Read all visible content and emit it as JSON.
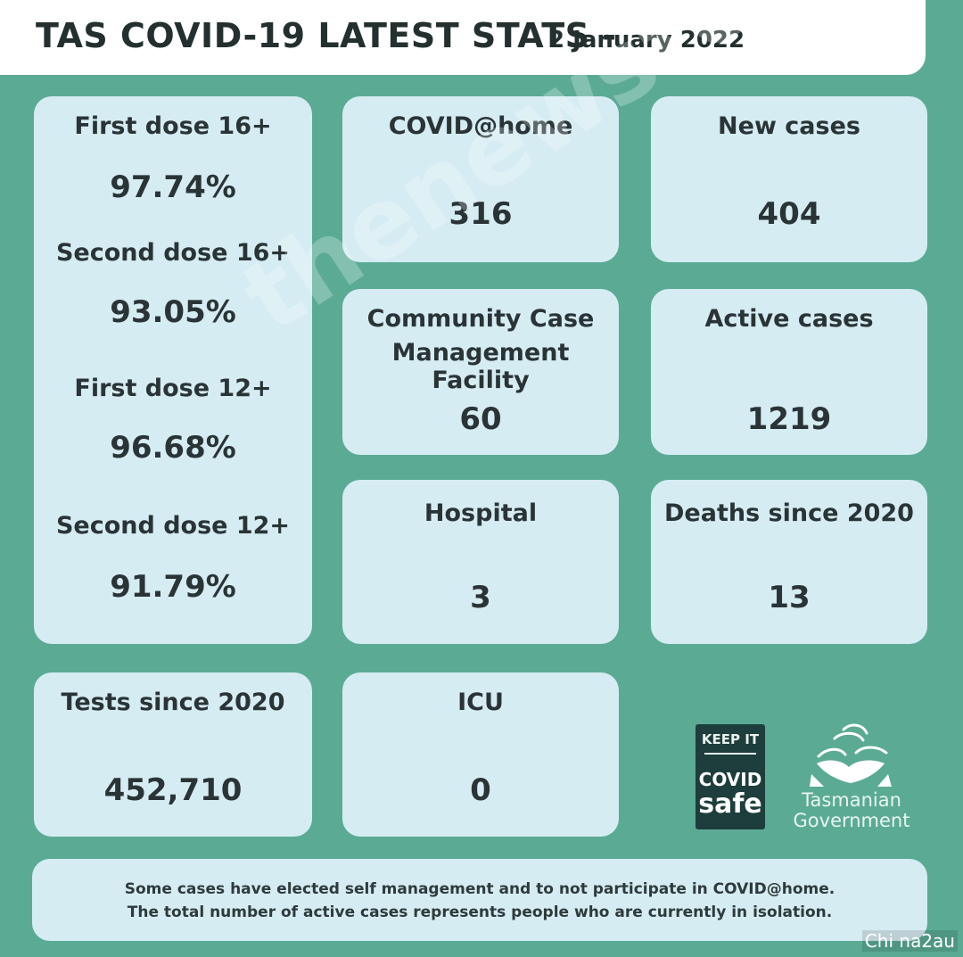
{
  "header": {
    "title": "TAS COVID-19 LATEST STATS -",
    "date": "2 January 2022"
  },
  "vaccination": {
    "first_dose_16_label": "First dose 16+",
    "first_dose_16_value": "97.74%",
    "second_dose_16_label": "Second dose 16+",
    "second_dose_16_value": "93.05%",
    "first_dose_12_label": "First dose 12+",
    "first_dose_12_value": "96.68%",
    "second_dose_12_label": "Second dose 12+",
    "second_dose_12_value": "91.79%"
  },
  "stats": {
    "covid_home_label": "COVID@home",
    "covid_home_value": "316",
    "new_cases_label": "New cases",
    "new_cases_value": "404",
    "ccmf_label_line1": "Community Case",
    "ccmf_label_line2": "Management Facility",
    "ccmf_value": "60",
    "active_cases_label": "Active cases",
    "active_cases_value": "1219",
    "hospital_label": "Hospital",
    "hospital_value": "3",
    "deaths_label": "Deaths since 2020",
    "deaths_value": "13",
    "tests_label": "Tests since 2020",
    "tests_value": "452,710",
    "icu_label": "ICU",
    "icu_value": "0"
  },
  "logos": {
    "covid_safe_line1": "KEEP IT",
    "covid_safe_line2": "COVID",
    "covid_safe_line3": "safe",
    "tas_gov_line1": "Tasmanian",
    "tas_gov_line2": "Government"
  },
  "footer": {
    "line1": "Some cases have elected self management and to not participate in COVID@home.",
    "line2": "The total number of active cases represents people who are currently in isolation."
  },
  "watermarks": {
    "site": "thenewstone.com",
    "corner": "Chi na2au"
  },
  "colors": {
    "background": "#5bab94",
    "card": "#d6ecf3",
    "header": "#ffffff",
    "badge": "#1d3e3c"
  }
}
